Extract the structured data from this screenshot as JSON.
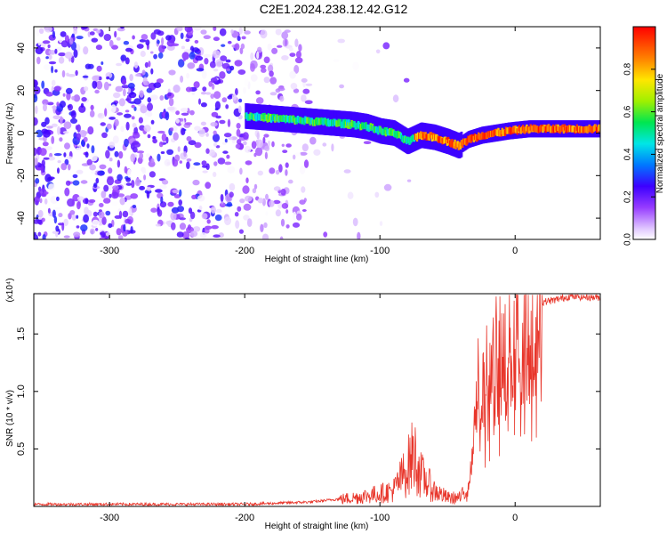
{
  "title": "C2E1.2024.238.12.42.G12",
  "charts": [
    {
      "type": "heatmap",
      "xlabel": "Height of straight line (km)",
      "ylabel": "Frequency (Hz)",
      "xlim": [
        -356,
        63
      ],
      "ylim": [
        -50,
        50
      ],
      "xticks": [
        -300,
        -200,
        -100,
        0
      ],
      "yticks": [
        -40,
        -20,
        0,
        20,
        40
      ],
      "colorbar": {
        "label": "Normalized spectral amplitude",
        "range": [
          0,
          1
        ],
        "ticks": [
          0.0,
          0.2,
          0.4,
          0.6,
          0.8
        ]
      },
      "ridge": {
        "description_points": [
          [
            -200,
            8
          ],
          [
            -180,
            7
          ],
          [
            -160,
            6
          ],
          [
            -140,
            5
          ],
          [
            -120,
            4
          ],
          [
            -110,
            3
          ],
          [
            -100,
            1
          ],
          [
            -90,
            0
          ],
          [
            -80,
            -4
          ],
          [
            -70,
            -1
          ],
          [
            -60,
            -2
          ],
          [
            -50,
            -4
          ],
          [
            -42,
            -6
          ],
          [
            -35,
            -3
          ],
          [
            -25,
            -1
          ],
          [
            -15,
            0
          ],
          [
            -5,
            1
          ],
          [
            10,
            2
          ],
          [
            30,
            2
          ],
          [
            63,
            2
          ]
        ]
      }
    },
    {
      "type": "line",
      "xlabel": "Height of straight line (km)",
      "ylabel": "SNR (10 * v/v)",
      "multiplier": "(x10⁴)",
      "xlim": [
        -356,
        63
      ],
      "ylim": [
        0,
        1.85
      ],
      "xticks": [
        -300,
        -200,
        -100,
        0
      ],
      "yticks": [
        0.5,
        1.0,
        1.5
      ],
      "color": "#e8352a",
      "envelope": [
        [
          -356,
          0.02
        ],
        [
          -250,
          0.02
        ],
        [
          -200,
          0.02
        ],
        [
          -150,
          0.04
        ],
        [
          -120,
          0.08
        ],
        [
          -100,
          0.12
        ],
        [
          -90,
          0.15
        ],
        [
          -80,
          0.35
        ],
        [
          -75,
          0.5
        ],
        [
          -70,
          0.3
        ],
        [
          -60,
          0.15
        ],
        [
          -50,
          0.08
        ],
        [
          -40,
          0.08
        ],
        [
          -35,
          0.2
        ],
        [
          -30,
          0.8
        ],
        [
          -28,
          1.35
        ],
        [
          -25,
          1.0
        ],
        [
          -20,
          1.2
        ],
        [
          -15,
          1.3
        ],
        [
          -10,
          1.3
        ],
        [
          -5,
          1.45
        ],
        [
          0,
          1.55
        ],
        [
          10,
          1.7
        ],
        [
          20,
          1.78
        ],
        [
          30,
          1.8
        ],
        [
          40,
          1.83
        ],
        [
          63,
          1.82
        ]
      ]
    }
  ]
}
